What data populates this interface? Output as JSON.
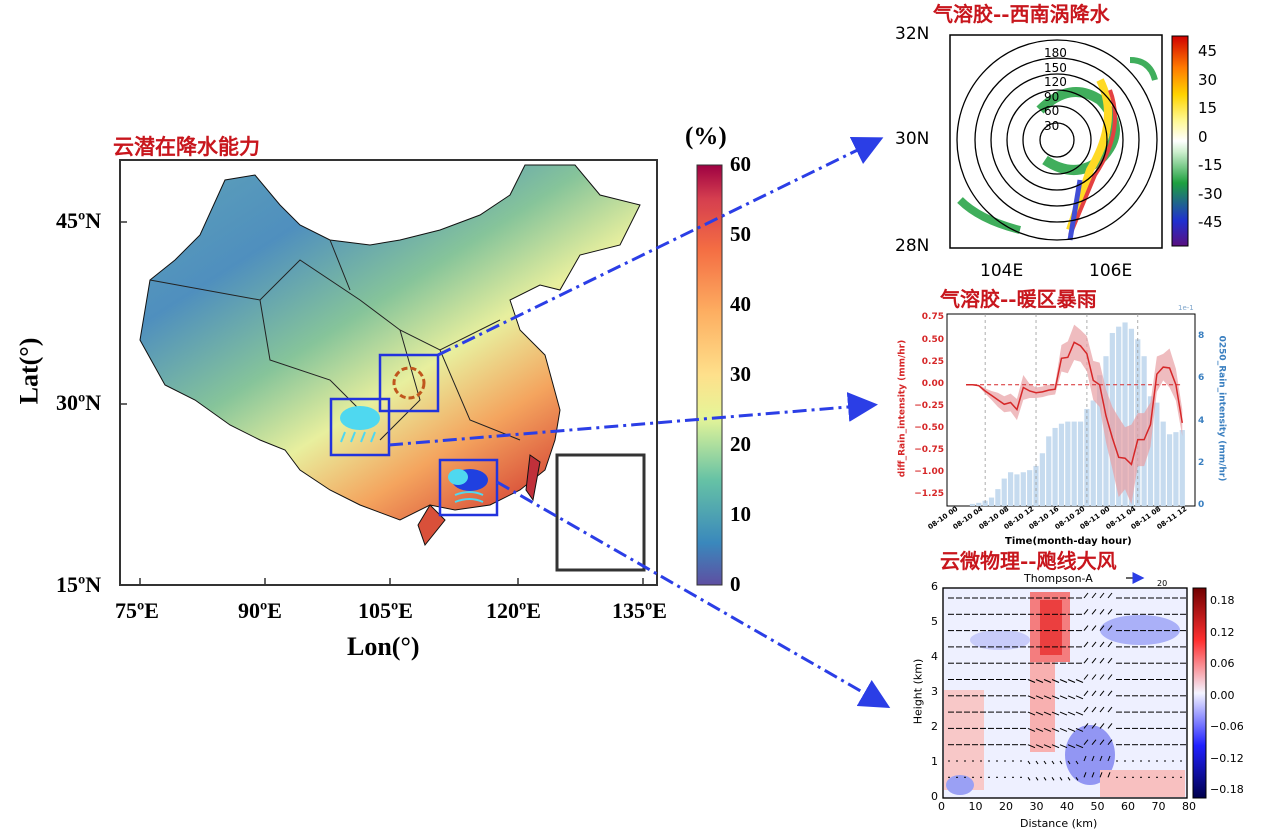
{
  "map_panel": {
    "title": "云潜在降水能力",
    "xlabel": "Lon(°)",
    "ylabel": "Lat(°)",
    "xticks": [
      "75ºE",
      "90ºE",
      "105ºE",
      "120ºE",
      "135ºE"
    ],
    "yticks": [
      "45ºN",
      "30ºN",
      "15ºN"
    ],
    "colorbar": {
      "unit": "(%)",
      "ticks": [
        "60",
        "50",
        "40",
        "30",
        "20",
        "10",
        "0"
      ],
      "range": [
        0,
        60
      ],
      "colormap": "Spectral_r"
    },
    "box_color": "#2233dd"
  },
  "vortex_panel": {
    "title": "气溶胶--西南涡降水",
    "yticks": [
      "32N",
      "30N",
      "28N"
    ],
    "xticks": [
      "104E",
      "106E"
    ],
    "contour_labels": [
      "180",
      "150",
      "120",
      "90",
      "60",
      "30"
    ],
    "colorbar": {
      "ticks": [
        "45",
        "30",
        "15",
        "0",
        "-15",
        "-30",
        "-45"
      ],
      "range": [
        -55,
        55
      ]
    }
  },
  "chart_data": [
    {
      "type": "line",
      "title": "气溶胶--暖区暴雨",
      "xlabel": "Time(month-day hour)",
      "ylabel": "diff_Rain_intensity (mm/hr)",
      "y2label": "0250_Rain_intensity (mm/hr)",
      "y2_scale_label": "1e-1",
      "xticks": [
        "08-10 00",
        "08-10 04",
        "08-10 08",
        "08-10 12",
        "08-10 16",
        "08-10 20",
        "08-11 00",
        "08-11 04",
        "08-11 08",
        "08-11 12"
      ],
      "yticks": [
        "0.75",
        "0.50",
        "0.25",
        "0.00",
        "−0.25",
        "−0.50",
        "−0.75",
        "−1.00",
        "−1.25"
      ],
      "y2ticks": [
        "8",
        "6",
        "4",
        "2",
        "0"
      ],
      "ylim": [
        -1.37,
        0.8
      ],
      "y2lim": [
        0,
        9.1
      ],
      "xlim_hours": [
        -2,
        37
      ],
      "line_color": "#d62728",
      "bar_color": "#c6dbef",
      "series": [
        {
          "name": "diff_Rain_intensity",
          "kind": "line",
          "hours": [
            1,
            2,
            3,
            4,
            5,
            6,
            7,
            8,
            9,
            10,
            11,
            12,
            13,
            14,
            15,
            16,
            17,
            18,
            19,
            20,
            21,
            22,
            23,
            24,
            25,
            26,
            27,
            28,
            29,
            30,
            31,
            32,
            33,
            34,
            35
          ],
          "values": [
            0,
            0,
            -0.01,
            -0.07,
            -0.12,
            -0.17,
            -0.22,
            -0.2,
            -0.28,
            -0.03,
            -0.07,
            -0.09,
            -0.08,
            -0.06,
            -0.05,
            0.3,
            0.31,
            0.48,
            0.44,
            0.35,
            0.05,
            0.0,
            -0.35,
            -0.6,
            -0.82,
            -0.83,
            -0.9,
            -0.62,
            -0.62,
            -0.45,
            0.12,
            0.2,
            0.19,
            0.0,
            -0.43
          ],
          "spread": [
            0,
            0,
            0.01,
            0.03,
            0.05,
            0.08,
            0.09,
            0.1,
            0.12,
            0.14,
            0.08,
            0.06,
            0.06,
            0.06,
            0.06,
            0.15,
            0.18,
            0.2,
            0.18,
            0.2,
            0.22,
            0.25,
            0.3,
            0.35,
            0.45,
            0.35,
            0.45,
            0.3,
            0.3,
            0.25,
            0.2,
            0.15,
            0.22,
            0.18,
            0.15
          ]
        },
        {
          "name": "0250_Rain_intensity",
          "kind": "bar",
          "hours": [
            2,
            3,
            4,
            5,
            6,
            7,
            8,
            9,
            10,
            11,
            12,
            13,
            14,
            15,
            16,
            17,
            18,
            19,
            20,
            21,
            22,
            23,
            24,
            25,
            26,
            27,
            28,
            29,
            30,
            31,
            32,
            33,
            34,
            35
          ],
          "values": [
            0.1,
            0.15,
            0.25,
            0.4,
            0.8,
            1.3,
            1.6,
            1.5,
            1.6,
            1.7,
            1.9,
            2.5,
            3.3,
            3.7,
            3.9,
            4.0,
            4.0,
            4.0,
            4.6,
            5.0,
            6.2,
            7.1,
            8.2,
            8.5,
            8.7,
            8.4,
            7.9,
            7.1,
            5.2,
            4.9,
            4.0,
            3.4,
            3.5,
            3.6
          ]
        }
      ]
    },
    {
      "type": "heatmap",
      "title": "云微物理--飑线大风",
      "subtitle": "Thompson-A",
      "reference_vector_label": "20",
      "xlabel": "Distance (km)",
      "ylabel": "Height (km)",
      "xticks": [
        "0",
        "10",
        "20",
        "30",
        "40",
        "50",
        "60",
        "70",
        "80"
      ],
      "yticks": [
        "0",
        "1",
        "2",
        "3",
        "4",
        "5",
        "6"
      ],
      "xlim": [
        0,
        80
      ],
      "ylim": [
        0,
        6
      ],
      "colorbar": {
        "ticks": [
          "0.18",
          "0.12",
          "0.06",
          "0.00",
          "−0.06",
          "−0.12",
          "−0.18"
        ],
        "range": [
          -0.2,
          0.2
        ],
        "colormap": "seismic"
      }
    }
  ]
}
